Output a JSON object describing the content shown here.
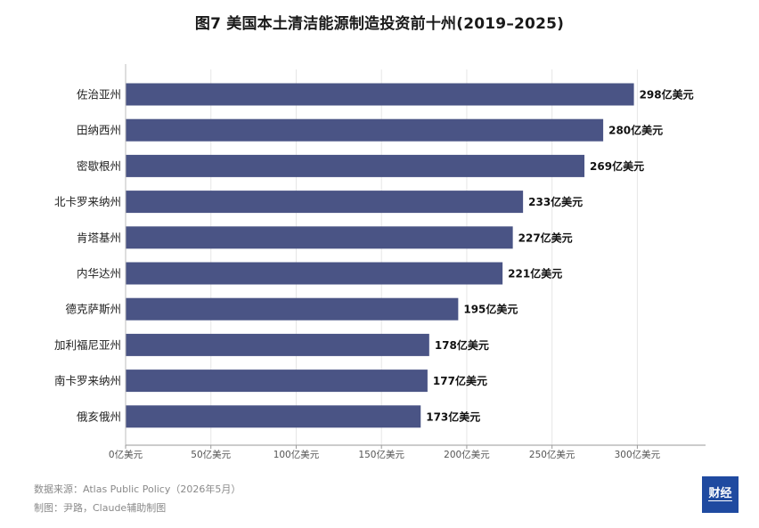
{
  "title": "图7  美国本土清洁能源制造投资前十州(2019–2025)",
  "chart_data": {
    "type": "bar",
    "orientation": "horizontal",
    "categories": [
      "佐治亚州",
      "田纳西州",
      "密歇根州",
      "北卡罗来纳州",
      "肯塔基州",
      "内华达州",
      "德克萨斯州",
      "加利福尼亚州",
      "南卡罗来纳州",
      "俄亥俄州"
    ],
    "values": [
      298,
      280,
      269,
      233,
      227,
      221,
      195,
      178,
      177,
      173
    ],
    "value_labels": [
      "298亿美元",
      "280亿美元",
      "269亿美元",
      "233亿美元",
      "227亿美元",
      "221亿美元",
      "195亿美元",
      "178亿美元",
      "177亿美元",
      "173亿美元"
    ],
    "x_ticks": [
      0,
      50,
      100,
      150,
      200,
      250,
      300
    ],
    "x_tick_labels": [
      "0亿美元",
      "50亿美元",
      "100亿美元",
      "150亿美元",
      "200亿美元",
      "250亿美元",
      "300亿美元"
    ],
    "xlim": [
      0,
      340
    ],
    "grid": "vertical",
    "bar_color": "#4a5485"
  },
  "footer": {
    "source": "数据来源：Atlas Public Policy（2026年5月）",
    "credit": "制图：尹路，Claude辅助制图"
  },
  "logo": {
    "text": "财经",
    "color": "#1f4aa0"
  }
}
